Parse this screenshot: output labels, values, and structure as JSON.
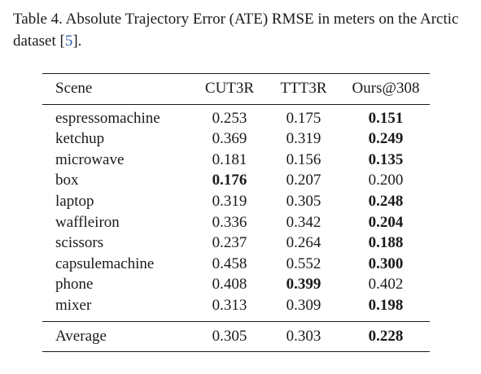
{
  "caption": {
    "text": "Table 4. Absolute Trajectory Error (ATE) RMSE in meters on the Arctic dataset [",
    "cite": "5",
    "close": "]."
  },
  "table": {
    "headers": [
      "Scene",
      "CUT3R",
      "TTT3R",
      "Ours@308"
    ],
    "rows": [
      {
        "scene": "espressomachine",
        "cut3r": "0.253",
        "ttt3r": "0.175",
        "ours": "0.151",
        "best": "ours"
      },
      {
        "scene": "ketchup",
        "cut3r": "0.369",
        "ttt3r": "0.319",
        "ours": "0.249",
        "best": "ours"
      },
      {
        "scene": "microwave",
        "cut3r": "0.181",
        "ttt3r": "0.156",
        "ours": "0.135",
        "best": "ours"
      },
      {
        "scene": "box",
        "cut3r": "0.176",
        "ttt3r": "0.207",
        "ours": "0.200",
        "best": "cut3r"
      },
      {
        "scene": "laptop",
        "cut3r": "0.319",
        "ttt3r": "0.305",
        "ours": "0.248",
        "best": "ours"
      },
      {
        "scene": "waffleiron",
        "cut3r": "0.336",
        "ttt3r": "0.342",
        "ours": "0.204",
        "best": "ours"
      },
      {
        "scene": "scissors",
        "cut3r": "0.237",
        "ttt3r": "0.264",
        "ours": "0.188",
        "best": "ours"
      },
      {
        "scene": "capsulemachine",
        "cut3r": "0.458",
        "ttt3r": "0.552",
        "ours": "0.300",
        "best": "ours"
      },
      {
        "scene": "phone",
        "cut3r": "0.408",
        "ttt3r": "0.399",
        "ours": "0.402",
        "best": "ttt3r"
      },
      {
        "scene": "mixer",
        "cut3r": "0.313",
        "ttt3r": "0.309",
        "ours": "0.198",
        "best": "ours"
      }
    ],
    "average": {
      "scene": "Average",
      "cut3r": "0.305",
      "ttt3r": "0.303",
      "ours": "0.228",
      "best": "ours"
    }
  }
}
